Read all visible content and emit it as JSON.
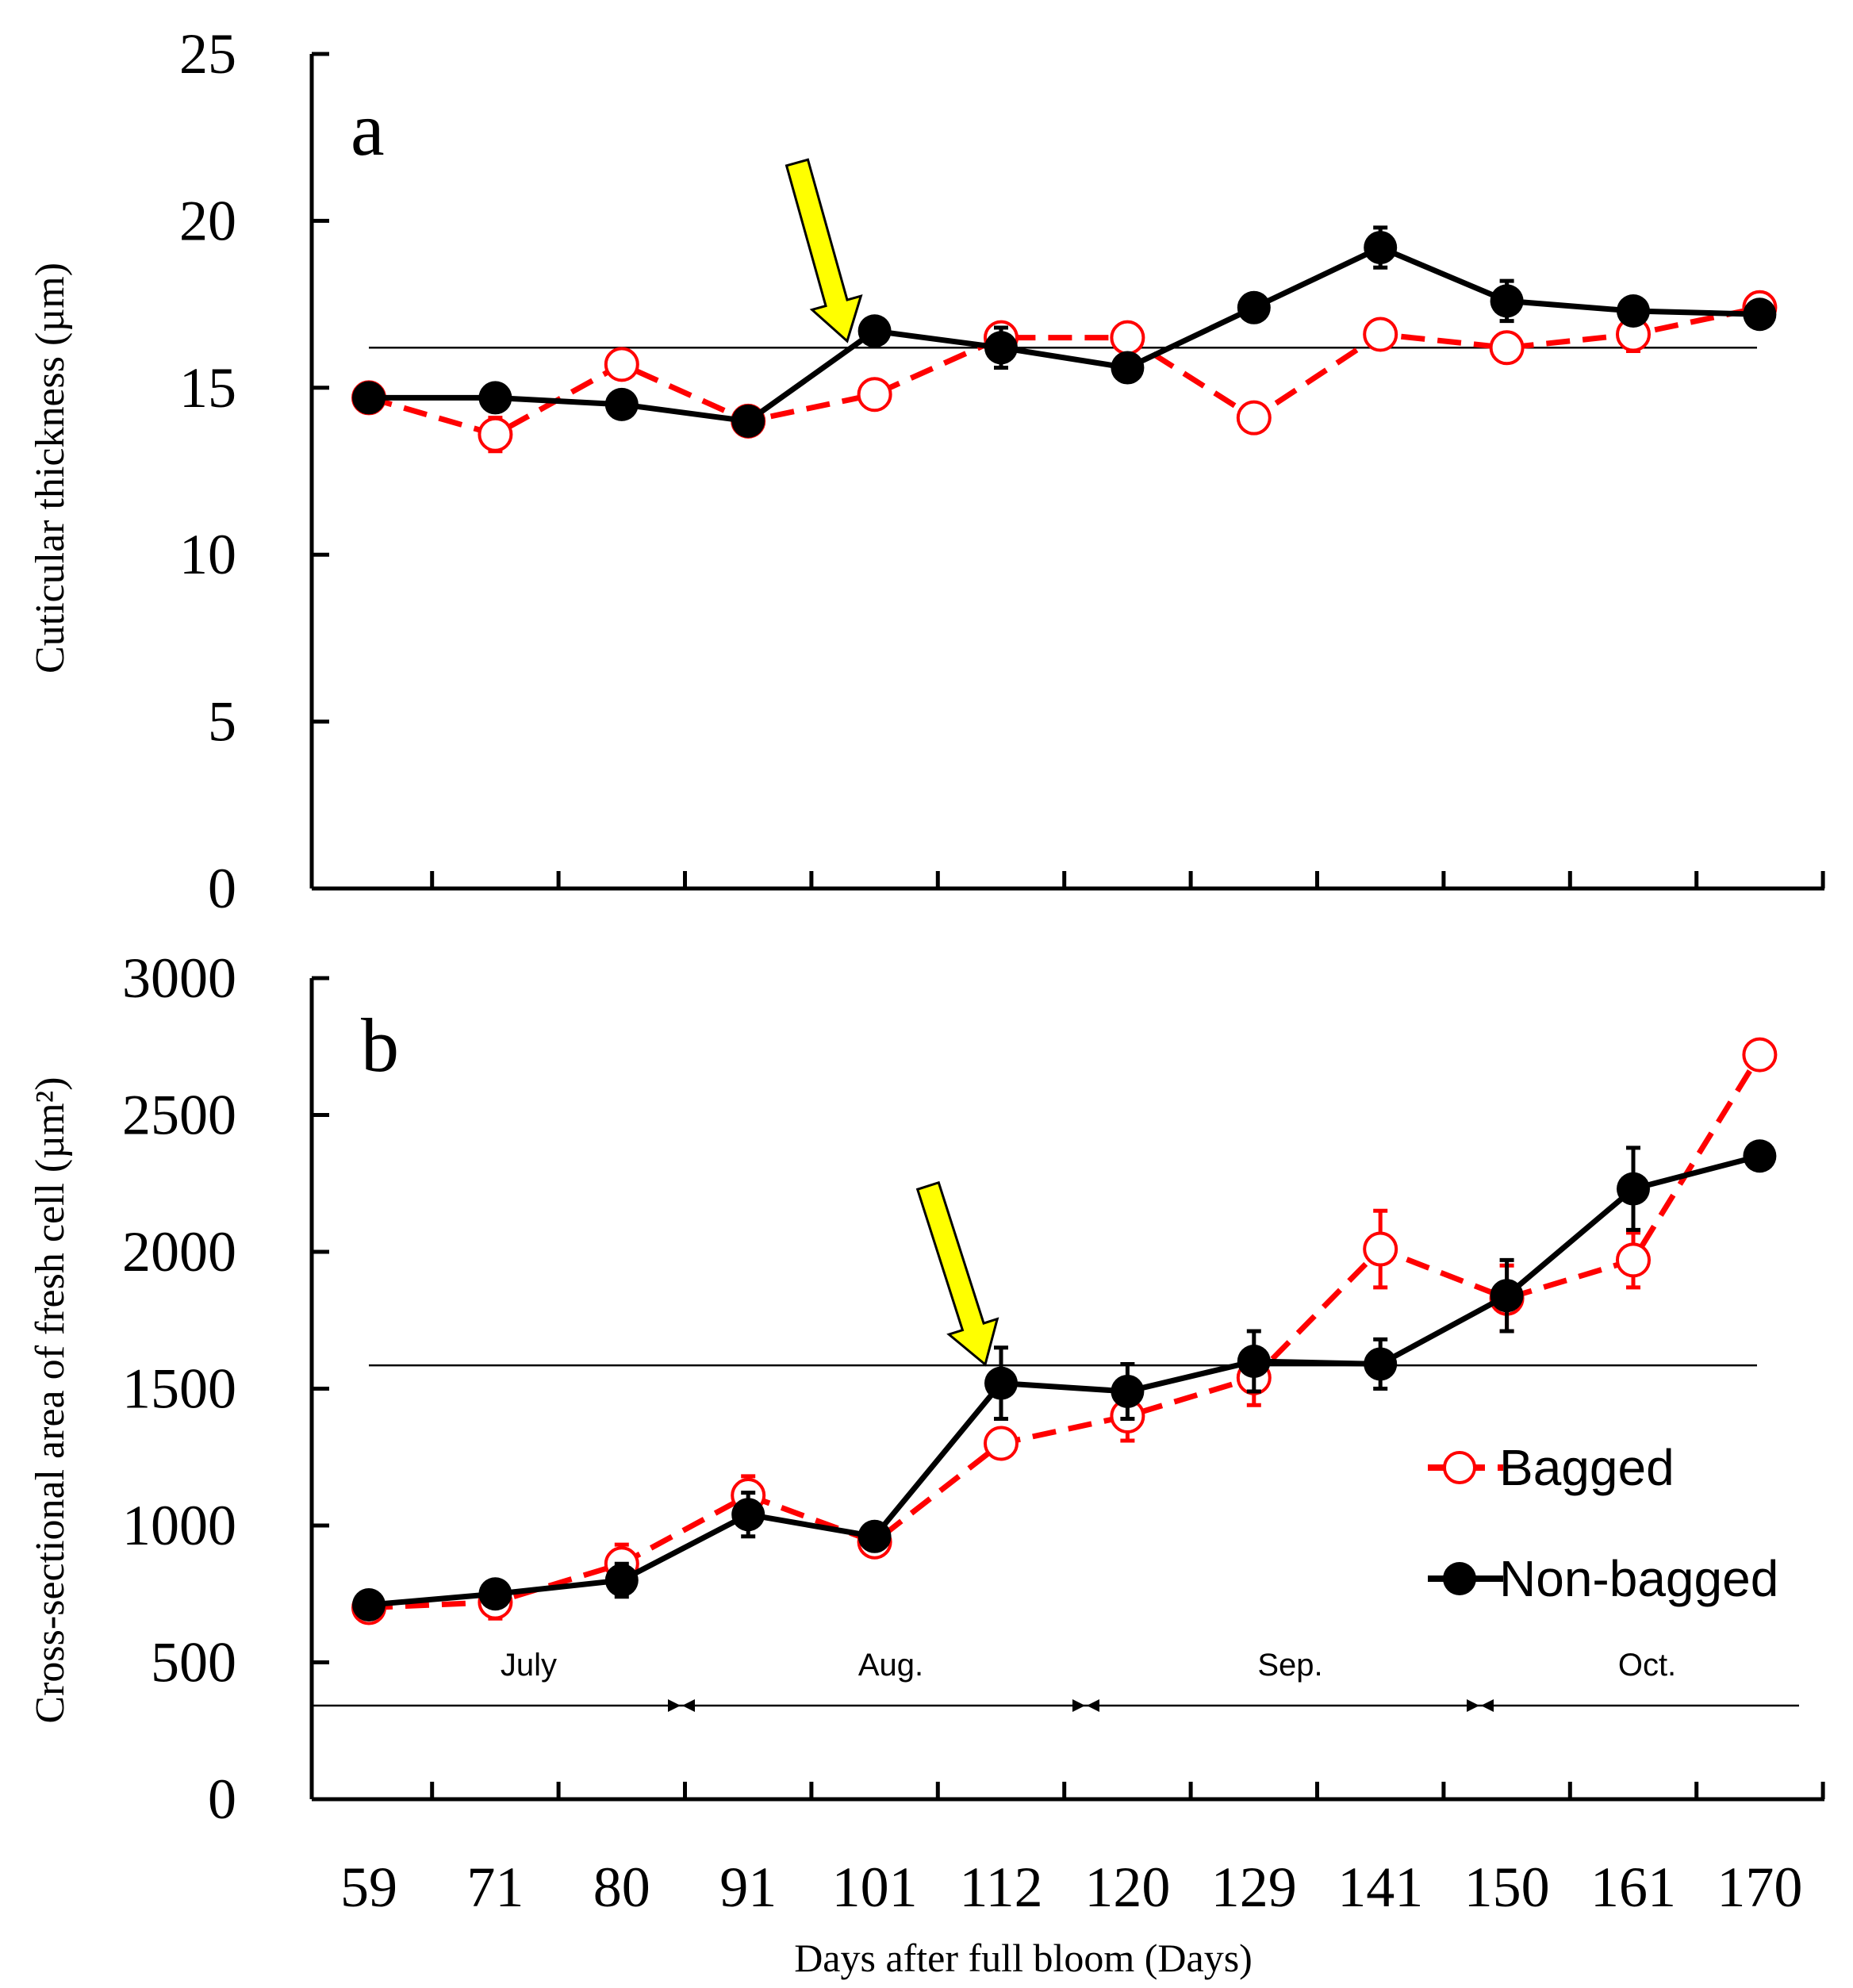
{
  "colors": {
    "bagged": "#ff0000",
    "nonbagged": "#000000",
    "arrow_fill": "#ffff00",
    "axis": "#000000"
  },
  "xlabel": "Days after full bloom (Days)",
  "chart_data": [
    {
      "type": "line",
      "panel_label": "a",
      "ylabel": "Cuticular thickness (µm)",
      "ylim": [
        0,
        25
      ],
      "yticks": [
        "0",
        "5",
        "10",
        "15",
        "20",
        "25"
      ],
      "categories": [
        "59",
        "71",
        "80",
        "91",
        "101",
        "112",
        "120",
        "129",
        "141",
        "150",
        "161",
        "170"
      ],
      "reference_line": 16.2,
      "arrow_at": "101",
      "series": [
        {
          "name": "Bagged",
          "style": "dashed",
          "marker": "open-circle",
          "color": "#ff0000",
          "values": [
            14.7,
            13.6,
            15.7,
            14.0,
            14.8,
            16.5,
            16.5,
            14.1,
            16.6,
            16.2,
            16.6,
            17.4
          ],
          "errors": [
            0.2,
            0.5,
            0.3,
            0.2,
            0.3,
            0.3,
            0.4,
            0.3,
            0.3,
            0.3,
            0.5,
            0.3
          ]
        },
        {
          "name": "Non-bagged",
          "style": "solid",
          "marker": "filled-circle",
          "color": "#000000",
          "values": [
            14.7,
            14.7,
            14.5,
            14.0,
            16.7,
            16.2,
            15.6,
            17.4,
            19.2,
            17.6,
            17.3,
            17.2
          ],
          "errors": [
            0.2,
            0.3,
            0.3,
            0.2,
            0.3,
            0.6,
            0.3,
            0.3,
            0.6,
            0.6,
            0.3,
            0.3
          ]
        }
      ]
    },
    {
      "type": "line",
      "panel_label": "b",
      "ylabel": "Cross-sectional area of   fresh cell (µm²)",
      "ylim": [
        0,
        3000
      ],
      "yticks": [
        "0",
        "500",
        "1000",
        "1500",
        "2000",
        "2500",
        "3000"
      ],
      "categories": [
        "59",
        "71",
        "80",
        "91",
        "101",
        "112",
        "120",
        "129",
        "141",
        "150",
        "161",
        "170"
      ],
      "reference_line": 1585,
      "arrow_at": "112",
      "months": [
        "July",
        "Aug.",
        "Sep.",
        "Oct."
      ],
      "series": [
        {
          "name": "Bagged",
          "style": "dashed",
          "marker": "open-circle",
          "color": "#ff0000",
          "values": [
            700,
            720,
            860,
            1110,
            940,
            1300,
            1400,
            1540,
            2010,
            1830,
            1970,
            2720
          ],
          "errors": [
            30,
            60,
            70,
            70,
            30,
            50,
            90,
            100,
            140,
            120,
            100,
            30
          ]
        },
        {
          "name": "Non-bagged",
          "style": "solid",
          "marker": "filled-circle",
          "color": "#000000",
          "values": [
            710,
            750,
            800,
            1040,
            960,
            1520,
            1490,
            1600,
            1590,
            1840,
            2230,
            2350
          ],
          "errors": [
            30,
            40,
            60,
            80,
            30,
            130,
            100,
            110,
            90,
            130,
            150,
            30
          ]
        }
      ]
    }
  ],
  "legend": {
    "items": [
      "Bagged",
      "Non-bagged"
    ]
  }
}
